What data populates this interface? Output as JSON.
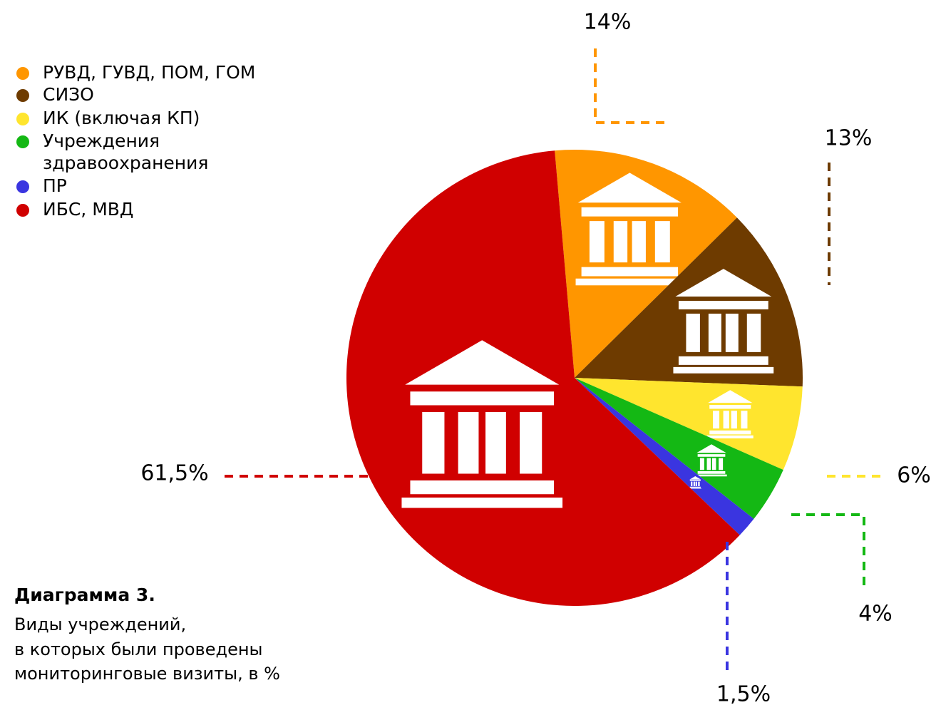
{
  "chart_data": {
    "type": "pie",
    "title": "Диаграмма 3.",
    "subtitle": [
      "Виды учреждений,",
      "в которых были проведены",
      "мониторинговые визиты, в %"
    ],
    "categories": [
      "РУВД, ГУВД, ПОМ, ГОМ",
      "СИЗО",
      "ИК (включая КП)",
      "Учреждения здравоохранения",
      "ПР",
      "ИБС, МВД"
    ],
    "values": [
      14,
      13,
      6,
      4,
      1.5,
      61.5
    ],
    "value_labels": [
      "14%",
      "13%",
      "6%",
      "4%",
      "1,5%",
      "61,5%"
    ],
    "colors": [
      "#ff9600",
      "#6e3b00",
      "#ffe52e",
      "#14b814",
      "#3a35e0",
      "#d00000"
    ],
    "legend": "top-left"
  }
}
